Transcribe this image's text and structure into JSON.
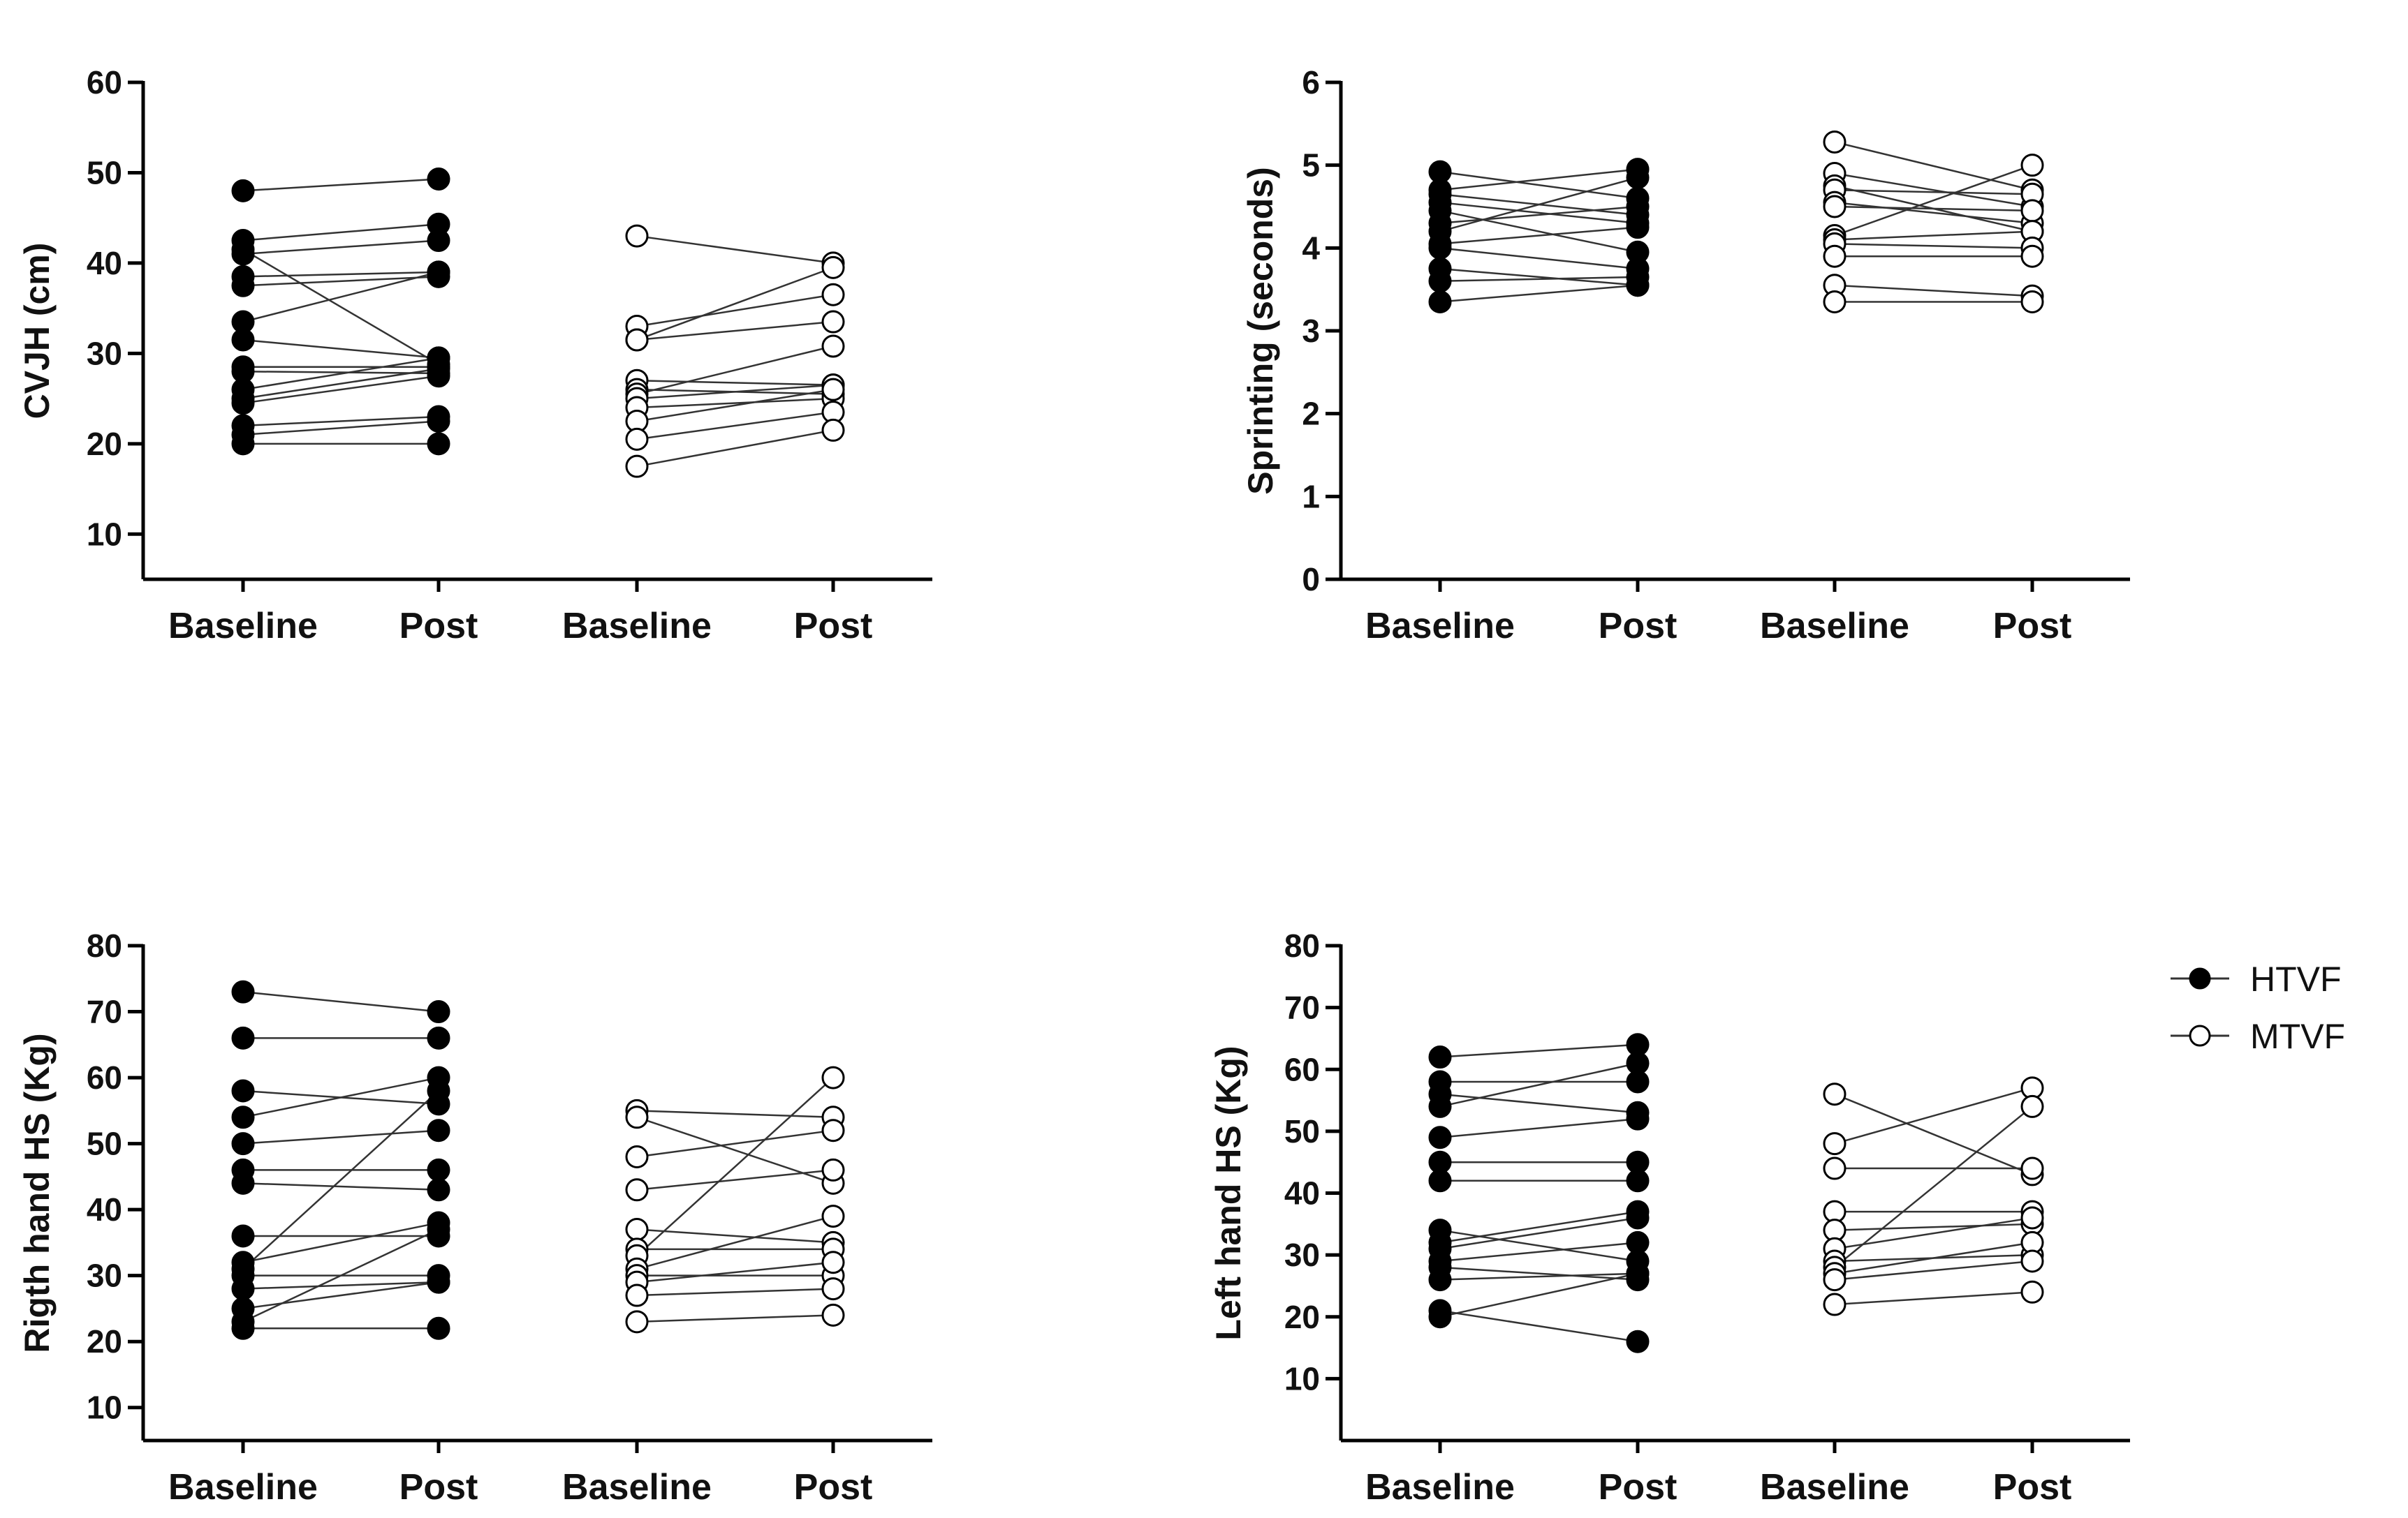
{
  "chart_data": [
    {
      "type": "scatter",
      "subtype": "paired-before-after",
      "title": "",
      "ylabel": "CVJH (cm)",
      "categories": [
        "Baseline",
        "Post",
        "Baseline",
        "Post"
      ],
      "ylim": [
        5,
        60
      ],
      "yticks": [
        10,
        20,
        30,
        40,
        50,
        60
      ],
      "series": [
        {
          "name": "HTVF",
          "style": "filled",
          "pairs": [
            [
              48,
              49.3
            ],
            [
              42.5,
              44.3
            ],
            [
              41.5,
              28.8
            ],
            [
              41,
              42.5
            ],
            [
              38.5,
              39
            ],
            [
              37.5,
              38.5
            ],
            [
              33.5,
              39
            ],
            [
              31.5,
              29.5
            ],
            [
              28.5,
              28.5
            ],
            [
              28,
              27.8
            ],
            [
              26,
              29.5
            ],
            [
              25,
              28.3
            ],
            [
              24.5,
              27.5
            ],
            [
              22,
              23
            ],
            [
              21,
              22.5
            ],
            [
              20,
              20
            ]
          ]
        },
        {
          "name": "MTVF",
          "style": "open",
          "pairs": [
            [
              43,
              40
            ],
            [
              33,
              36.5
            ],
            [
              31.5,
              39.5
            ],
            [
              31.5,
              33.5
            ],
            [
              27,
              26.5
            ],
            [
              26,
              25.5
            ],
            [
              25.5,
              30.8
            ],
            [
              25,
              26.5
            ],
            [
              24,
              25
            ],
            [
              22.5,
              26
            ],
            [
              20.5,
              23.5
            ],
            [
              17.5,
              21.5
            ]
          ]
        }
      ]
    },
    {
      "type": "scatter",
      "subtype": "paired-before-after",
      "title": "",
      "ylabel": "Sprinting (seconds)",
      "categories": [
        "Baseline",
        "Post",
        "Baseline",
        "Post"
      ],
      "ylim": [
        0,
        6
      ],
      "yticks": [
        0,
        1,
        2,
        3,
        4,
        5,
        6
      ],
      "series": [
        {
          "name": "HTVF",
          "style": "filled",
          "pairs": [
            [
              4.92,
              4.6
            ],
            [
              4.7,
              4.95
            ],
            [
              4.65,
              4.4
            ],
            [
              4.55,
              4.3
            ],
            [
              4.45,
              3.95
            ],
            [
              4.3,
              4.5
            ],
            [
              4.2,
              4.85
            ],
            [
              4.05,
              4.25
            ],
            [
              4.0,
              3.75
            ],
            [
              3.75,
              3.55
            ],
            [
              3.6,
              3.65
            ],
            [
              3.35,
              3.55
            ]
          ]
        },
        {
          "name": "MTVF",
          "style": "open",
          "pairs": [
            [
              5.28,
              4.7
            ],
            [
              4.9,
              4.5
            ],
            [
              4.75,
              4.2
            ],
            [
              4.7,
              4.65
            ],
            [
              4.55,
              4.3
            ],
            [
              4.5,
              4.45
            ],
            [
              4.15,
              5.0
            ],
            [
              4.1,
              4.2
            ],
            [
              4.05,
              4.0
            ],
            [
              3.9,
              3.9
            ],
            [
              3.55,
              3.42
            ],
            [
              3.35,
              3.35
            ]
          ]
        }
      ]
    },
    {
      "type": "scatter",
      "subtype": "paired-before-after",
      "title": "",
      "ylabel": "Rigth hand HS (Kg)",
      "categories": [
        "Baseline",
        "Post",
        "Baseline",
        "Post"
      ],
      "ylim": [
        5,
        80
      ],
      "yticks": [
        10,
        20,
        30,
        40,
        50,
        60,
        70,
        80
      ],
      "series": [
        {
          "name": "HTVF",
          "style": "filled",
          "pairs": [
            [
              73,
              70
            ],
            [
              66,
              66
            ],
            [
              58,
              56
            ],
            [
              54,
              60
            ],
            [
              50,
              52
            ],
            [
              46,
              46
            ],
            [
              44,
              43
            ],
            [
              36,
              36
            ],
            [
              32,
              38
            ],
            [
              31,
              58
            ],
            [
              30,
              30
            ],
            [
              28,
              29
            ],
            [
              25,
              29
            ],
            [
              23,
              37
            ],
            [
              22,
              22
            ]
          ]
        },
        {
          "name": "MTVF",
          "style": "open",
          "pairs": [
            [
              55,
              54
            ],
            [
              54,
              44
            ],
            [
              48,
              52
            ],
            [
              43,
              46
            ],
            [
              37,
              35
            ],
            [
              34,
              34
            ],
            [
              33,
              60
            ],
            [
              31,
              39
            ],
            [
              30,
              30
            ],
            [
              29,
              32
            ],
            [
              27,
              28
            ],
            [
              23,
              24
            ]
          ]
        }
      ]
    },
    {
      "type": "scatter",
      "subtype": "paired-before-after",
      "title": "",
      "ylabel": "Left hand HS (Kg)",
      "categories": [
        "Baseline",
        "Post",
        "Baseline",
        "Post"
      ],
      "ylim": [
        0,
        80
      ],
      "yticks": [
        10,
        20,
        30,
        40,
        50,
        60,
        70,
        80
      ],
      "series": [
        {
          "name": "HTVF",
          "style": "filled",
          "pairs": [
            [
              62,
              64
            ],
            [
              58,
              58
            ],
            [
              56,
              53
            ],
            [
              54,
              61
            ],
            [
              49,
              52
            ],
            [
              45,
              45
            ],
            [
              42,
              42
            ],
            [
              34,
              29
            ],
            [
              32,
              37
            ],
            [
              31,
              36
            ],
            [
              29,
              32
            ],
            [
              28,
              26
            ],
            [
              26,
              27
            ],
            [
              21,
              16
            ],
            [
              20,
              27
            ]
          ]
        },
        {
          "name": "MTVF",
          "style": "open",
          "pairs": [
            [
              56,
              43
            ],
            [
              48,
              57
            ],
            [
              44,
              44
            ],
            [
              37,
              37
            ],
            [
              34,
              35
            ],
            [
              31,
              36
            ],
            [
              29,
              30
            ],
            [
              28,
              54
            ],
            [
              27,
              32
            ],
            [
              26,
              29
            ],
            [
              22,
              24
            ]
          ]
        }
      ]
    }
  ],
  "legend": {
    "position": "right",
    "entries": [
      {
        "label": "HTVF",
        "style": "filled"
      },
      {
        "label": "MTVF",
        "style": "open"
      }
    ]
  }
}
